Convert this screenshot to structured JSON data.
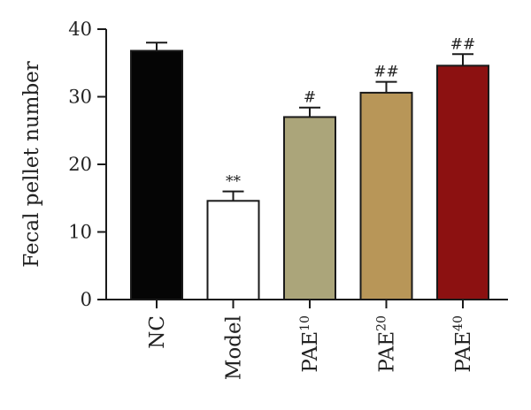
{
  "chart_data": {
    "type": "bar",
    "title": "",
    "xlabel": "",
    "ylabel": "Fecal pellet number",
    "ylim": [
      0,
      40
    ],
    "yticks": [
      0,
      10,
      20,
      30,
      40
    ],
    "grid": false,
    "categories": [
      {
        "base": "NC",
        "sup": ""
      },
      {
        "base": "Model",
        "sup": ""
      },
      {
        "base": "PAE",
        "sup": "10"
      },
      {
        "base": "PAE",
        "sup": "20"
      },
      {
        "base": "PAE",
        "sup": "40"
      }
    ],
    "values": [
      36.8,
      14.6,
      27.0,
      30.6,
      34.6
    ],
    "errors": [
      1.2,
      1.4,
      1.4,
      1.6,
      1.7
    ],
    "annotations": [
      "",
      "**",
      "#",
      "##",
      "##"
    ],
    "colors": [
      "#050505",
      "#ffffff",
      "#aba57a",
      "#b89658",
      "#8c1111"
    ],
    "edge_color": "#1a1a1a"
  }
}
